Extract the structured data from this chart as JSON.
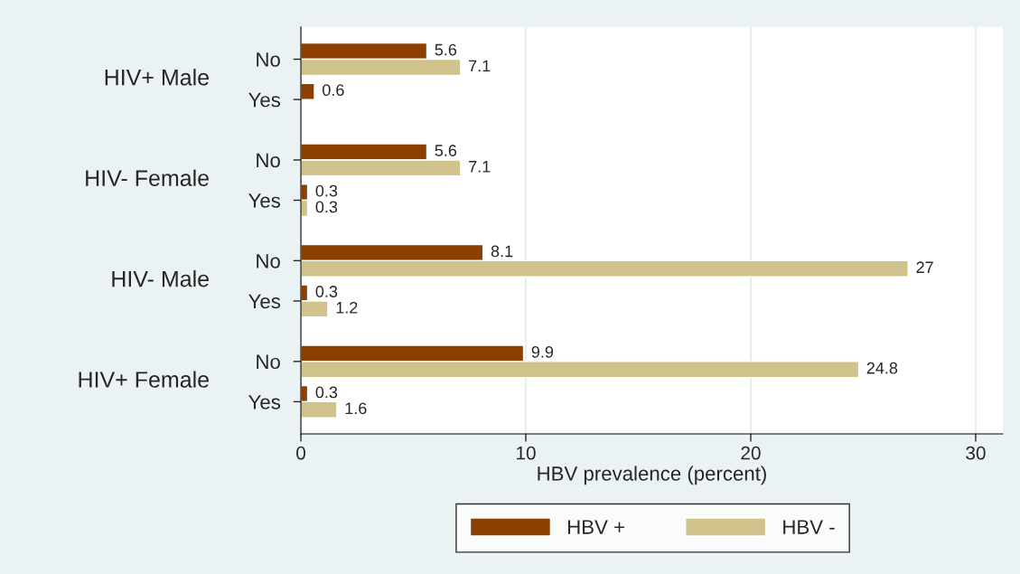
{
  "chart_data": {
    "type": "bar",
    "orientation": "horizontal",
    "xlabel": "HBV prevalence (percent)",
    "categories": [
      "No",
      "Yes",
      "No",
      "Yes",
      "No",
      "Yes",
      "No",
      "Yes"
    ],
    "annotations": [
      "HIV+ Male",
      "HIV- Female",
      "HIV- Male",
      "HIV+ Female"
    ],
    "series": [
      {
        "name": "HBV +",
        "color": "#8b3f00",
        "values": [
          5.6,
          0.6,
          5.6,
          0.3,
          8.1,
          0.3,
          9.9,
          0.3
        ]
      },
      {
        "name": "HBV -",
        "color": "#cfc28a",
        "values": [
          7.1,
          null,
          7.1,
          0.3,
          27,
          1.2,
          24.8,
          1.6
        ]
      }
    ],
    "xlim": [
      0,
      31.2
    ],
    "xticks": [
      0,
      10,
      20,
      30
    ],
    "grid": "x",
    "legend": "bottom",
    "data_labels": true
  }
}
